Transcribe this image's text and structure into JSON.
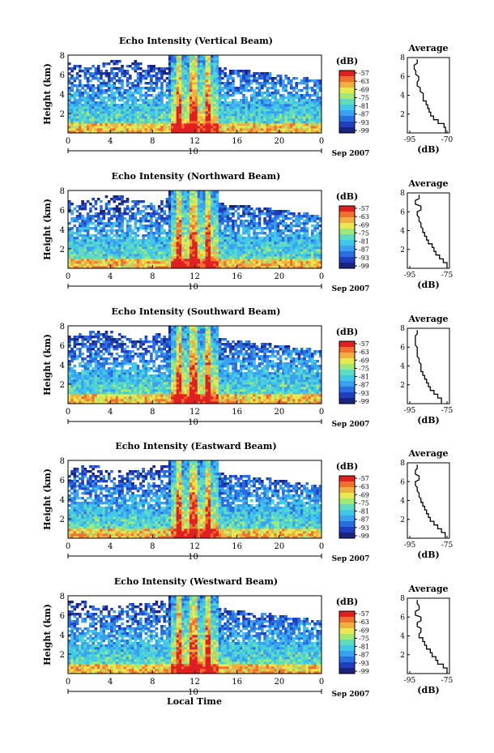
{
  "chart_data": [
    {
      "type": "heatmap",
      "title": "Echo Intensity (Vertical Beam)",
      "ylabel": "Height (km)",
      "xticks": [
        "0",
        "4",
        "8",
        "12",
        "16",
        "20",
        "0"
      ],
      "day_label": "10",
      "date_label": "Sep 2007",
      "ylim": [
        0,
        8
      ],
      "yticks": [
        "2",
        "4",
        "6",
        "8"
      ],
      "colorbar_unit": "(dB)",
      "colorbar_ticks": [
        "-57",
        "-63",
        "-69",
        "-75",
        "-81",
        "-87",
        "-93",
        "-99"
      ],
      "average_profile": {
        "title": "Average",
        "xlabel": "(dB)",
        "xticks": [
          "-95",
          "-70"
        ],
        "yticks": [
          "2",
          "4",
          "6",
          "8"
        ],
        "x": [
          -71,
          -72,
          -76,
          -79,
          -81,
          -82,
          -83,
          -84,
          -86,
          -86,
          -88,
          -90,
          -89,
          -91,
          -92,
          -90
        ],
        "y": [
          0.4,
          0.8,
          1.2,
          1.6,
          2.0,
          2.4,
          2.8,
          3.2,
          3.6,
          4.0,
          4.6,
          5.2,
          5.8,
          6.4,
          7.0,
          7.6
        ]
      }
    },
    {
      "type": "heatmap",
      "title": "Echo Intensity (Northward Beam)",
      "ylabel": "Height (km)",
      "xticks": [
        "0",
        "4",
        "8",
        "12",
        "16",
        "20",
        "0"
      ],
      "day_label": "10",
      "date_label": "Sep 2007",
      "ylim": [
        0,
        8
      ],
      "yticks": [
        "2",
        "4",
        "6",
        "8"
      ],
      "colorbar_unit": "(dB)",
      "colorbar_ticks": [
        "-57",
        "-63",
        "-69",
        "-75",
        "-81",
        "-87",
        "-93",
        "-99"
      ],
      "average_profile": {
        "title": "Average",
        "xlabel": "(dB)",
        "xticks": [
          "-95",
          "-75"
        ],
        "yticks": [
          "2",
          "4",
          "6",
          "8"
        ],
        "x": [
          -75,
          -77,
          -79,
          -81,
          -82,
          -83,
          -85,
          -86,
          -87,
          -88,
          -89,
          -90,
          -91,
          -89,
          -92,
          -90
        ],
        "y": [
          0.4,
          0.8,
          1.2,
          1.6,
          2.0,
          2.4,
          2.8,
          3.2,
          3.6,
          4.0,
          4.6,
          5.2,
          5.8,
          6.4,
          7.0,
          7.6
        ]
      }
    },
    {
      "type": "heatmap",
      "title": "Echo Intensity (Southward Beam)",
      "ylabel": "Height (km)",
      "xticks": [
        "0",
        "4",
        "8",
        "12",
        "16",
        "20",
        "0"
      ],
      "day_label": "10",
      "date_label": "Sep 2007",
      "ylim": [
        0,
        8
      ],
      "yticks": [
        "2",
        "4",
        "6",
        "8"
      ],
      "colorbar_unit": "(dB)",
      "colorbar_ticks": [
        "-57",
        "-63",
        "-69",
        "-75",
        "-81",
        "-87",
        "-93",
        "-99"
      ],
      "average_profile": {
        "title": "Average",
        "xlabel": "(dB)",
        "xticks": [
          "-95",
          "-75"
        ],
        "yticks": [
          "2",
          "4",
          "6",
          "8"
        ],
        "x": [
          -78,
          -80,
          -82,
          -84,
          -85,
          -86,
          -87,
          -88,
          -89,
          -89,
          -90,
          -91,
          -91,
          -92,
          -92,
          -91
        ],
        "y": [
          0.4,
          0.8,
          1.2,
          1.6,
          2.0,
          2.4,
          2.8,
          3.2,
          3.6,
          4.0,
          4.6,
          5.2,
          5.8,
          6.4,
          7.0,
          7.6
        ]
      }
    },
    {
      "type": "heatmap",
      "title": "Echo Intensity (Eastward Beam)",
      "ylabel": "Height (km)",
      "xticks": [
        "0",
        "4",
        "8",
        "12",
        "16",
        "20",
        "0"
      ],
      "day_label": "10",
      "date_label": "Sep 2007",
      "ylim": [
        0,
        8
      ],
      "yticks": [
        "2",
        "4",
        "6",
        "8"
      ],
      "colorbar_unit": "(dB)",
      "colorbar_ticks": [
        "-57",
        "-63",
        "-69",
        "-75",
        "-81",
        "-87",
        "-93",
        "-99"
      ],
      "average_profile": {
        "title": "Average",
        "xlabel": "(dB)",
        "xticks": [
          "-95",
          "-75"
        ],
        "yticks": [
          "2",
          "4",
          "6",
          "8"
        ],
        "x": [
          -76,
          -78,
          -80,
          -82,
          -84,
          -85,
          -86,
          -87,
          -88,
          -89,
          -90,
          -91,
          -92,
          -90,
          -92,
          -91
        ],
        "y": [
          0.4,
          0.8,
          1.2,
          1.6,
          2.0,
          2.4,
          2.8,
          3.2,
          3.6,
          4.0,
          4.6,
          5.2,
          5.8,
          6.4,
          7.0,
          7.6
        ]
      }
    },
    {
      "type": "heatmap",
      "title": "Echo Intensity (Westward Beam)",
      "ylabel": "Height (km)",
      "xticks": [
        "0",
        "4",
        "8",
        "12",
        "16",
        "20",
        "0"
      ],
      "day_label": "10",
      "date_label": "Sep 2007",
      "xlabel": "Local Time",
      "ylim": [
        0,
        8
      ],
      "yticks": [
        "2",
        "4",
        "6",
        "8"
      ],
      "colorbar_unit": "(dB)",
      "colorbar_ticks": [
        "-57",
        "-63",
        "-69",
        "-75",
        "-81",
        "-87",
        "-93",
        "-99"
      ],
      "average_profile": {
        "title": "Average",
        "xlabel": "(dB)",
        "xticks": [
          "-95",
          "-75"
        ],
        "yticks": [
          "2",
          "4",
          "6",
          "8"
        ],
        "x": [
          -75,
          -77,
          -80,
          -81,
          -83,
          -84,
          -86,
          -87,
          -88,
          -90,
          -89,
          -91,
          -89,
          -92,
          -90,
          -91
        ],
        "y": [
          0.4,
          0.8,
          1.2,
          1.6,
          2.0,
          2.4,
          2.8,
          3.2,
          3.6,
          4.0,
          4.6,
          5.2,
          5.8,
          6.4,
          7.0,
          7.6
        ]
      }
    }
  ],
  "colors": {
    "colormap": [
      "#1a237e",
      "#1f3fbf",
      "#2a6fe0",
      "#3aa0f0",
      "#40c8e8",
      "#5fdcc0",
      "#a0e878",
      "#e8e850",
      "#f0b040",
      "#f07030",
      "#e02020"
    ]
  }
}
